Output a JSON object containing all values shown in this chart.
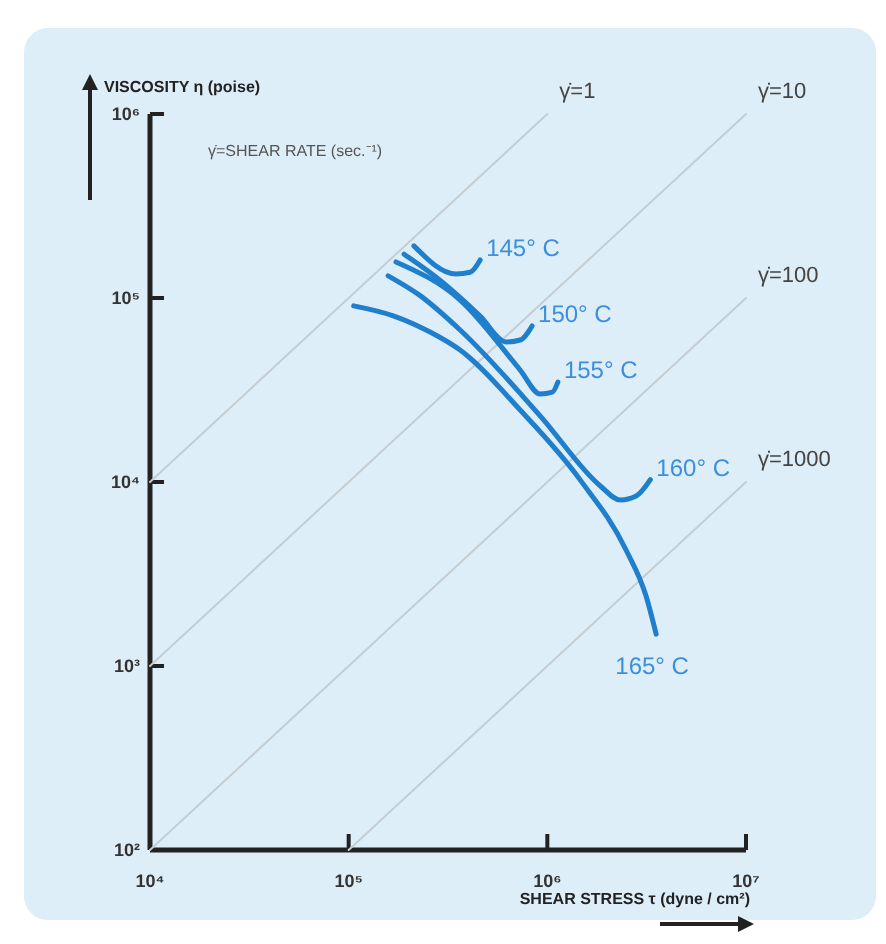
{
  "chart_data": {
    "type": "line",
    "log": "xy",
    "xlabel": "SHEAR STRESS τ (dyne / cm²)",
    "ylabel": "VISCOSITY η (poise)",
    "annotations": [
      "γ̇=SHEAR RATE (sec.⁻¹)"
    ],
    "xlim": [
      10000,
      10000000
    ],
    "ylim": [
      100,
      1000000
    ],
    "xticks": [
      {
        "value": 10000,
        "label": "10⁴"
      },
      {
        "value": 100000,
        "label": "10⁵"
      },
      {
        "value": 1000000,
        "label": "10⁶"
      },
      {
        "value": 10000000,
        "label": "10⁷"
      }
    ],
    "yticks": [
      {
        "value": 100,
        "label": "10²"
      },
      {
        "value": 1000,
        "label": "10³"
      },
      {
        "value": 10000,
        "label": "10⁴"
      },
      {
        "value": 100000,
        "label": "10⁵"
      },
      {
        "value": 1000000,
        "label": "10⁶"
      }
    ],
    "marker": "none",
    "line_style": "solid",
    "series": [
      {
        "name": "γ̇=1",
        "color": "#c4cdd3",
        "x": [
          10000,
          1000000
        ],
        "values": [
          10000,
          1000000
        ]
      },
      {
        "name": "γ̇=10",
        "color": "#c4cdd3",
        "x": [
          10000,
          10000000
        ],
        "values": [
          1000,
          1000000
        ]
      },
      {
        "name": "γ̇=100",
        "color": "#c4cdd3",
        "x": [
          10000,
          10000000
        ],
        "values": [
          100,
          100000
        ]
      },
      {
        "name": "γ̇=1000",
        "color": "#c4cdd3",
        "x": [
          100000,
          10000000
        ],
        "values": [
          100,
          10000
        ]
      },
      {
        "name": "145° C",
        "color": "#1f7fcc",
        "x": [
          213000,
          347000,
          409000,
          459000
        ],
        "values": [
          192000,
          135000,
          138000,
          161000
        ]
      },
      {
        "name": "150° C",
        "color": "#1f7fcc",
        "x": [
          190000,
          288000,
          459000,
          621000,
          730000,
          838000
        ],
        "values": [
          173000,
          125000,
          79800,
          57700,
          59100,
          70500
        ]
      },
      {
        "name": "155° C",
        "color": "#1f7fcc",
        "x": [
          173000,
          364000,
          730000,
          920000,
          1060000,
          1130000
        ],
        "values": [
          157000,
          97500,
          40600,
          30100,
          30800,
          34900
        ]
      },
      {
        "name": "160° C",
        "color": "#1f7fcc",
        "x": [
          158000,
          229000,
          364000,
          920000,
          1850000,
          2330000,
          2800000,
          3300000
        ],
        "values": [
          132000,
          103000,
          67000,
          22900,
          9510,
          7980,
          8390,
          10300
        ]
      },
      {
        "name": "165° C",
        "color": "#1f7fcc",
        "x": [
          106000,
          169000,
          257000,
          364000,
          730000,
          1460000,
          2490000,
          3140000,
          3530000
        ],
        "values": [
          90600,
          79800,
          65300,
          52100,
          24600,
          10300,
          4270,
          2400,
          1490
        ]
      }
    ]
  }
}
